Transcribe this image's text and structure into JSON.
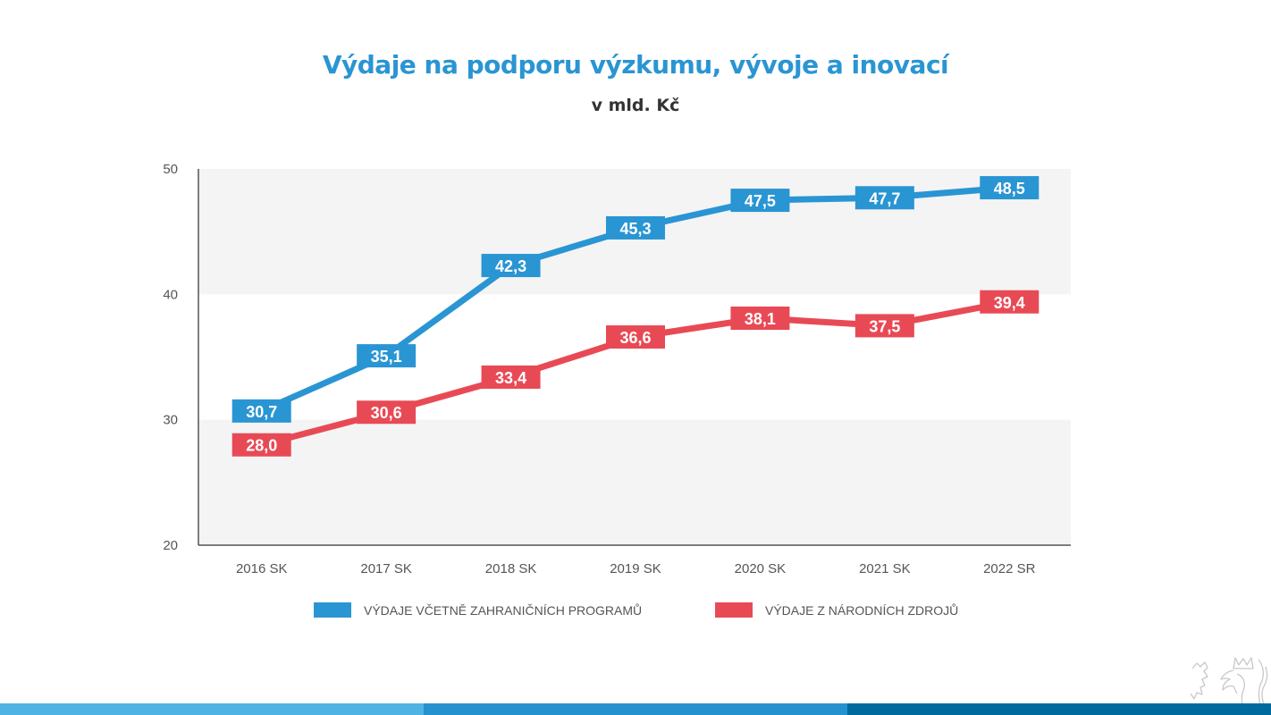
{
  "chart_data": {
    "type": "line",
    "title": "Výdaje na podporu výzkumu, vývoje a inovací",
    "subtitle": "v mld. Kč",
    "xlabel": "",
    "ylabel": "",
    "categories": [
      "2016 SK",
      "2017 SK",
      "2018 SK",
      "2019 SK",
      "2020 SK",
      "2021 SK",
      "2022 SR"
    ],
    "ylim": [
      20,
      50
    ],
    "yticks": [
      20,
      30,
      40,
      50
    ],
    "ytick_labels": [
      "20",
      "30",
      "40",
      "50"
    ],
    "grid": "alternating horizontal bands",
    "legend_position": "bottom-center",
    "series": [
      {
        "name": "VÝDAJE VČETNĚ ZAHRANIČNÍCH PROGRAMŮ",
        "color": "#2a95d3",
        "values": [
          30.7,
          35.1,
          42.3,
          45.3,
          47.5,
          47.7,
          48.5
        ],
        "labels": [
          "30,7",
          "35,1",
          "42,3",
          "45,3",
          "47,5",
          "47,7",
          "48,5"
        ]
      },
      {
        "name": "VÝDAJE Z NÁRODNÍCH ZDROJŮ",
        "color": "#e84a55",
        "values": [
          28.0,
          30.6,
          33.4,
          36.6,
          38.1,
          37.5,
          39.4
        ],
        "labels": [
          "28,0",
          "30,6",
          "33,4",
          "36,6",
          "38,1",
          "37,5",
          "39,4"
        ]
      }
    ]
  },
  "colors": {
    "title": "#2a95d3",
    "band": "#f4f4f4",
    "axis": "#555555",
    "tick_text": "#555555",
    "footer": [
      "#4fb3e3",
      "#2592d0",
      "#006a9f"
    ]
  },
  "logo": {
    "icon": "czech-lion-icon"
  }
}
